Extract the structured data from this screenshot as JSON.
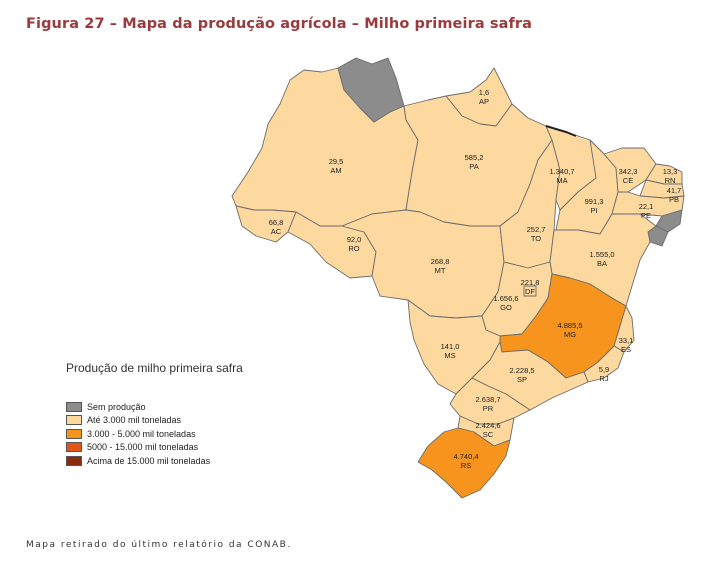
{
  "title": "Figura 27 – Mapa da produção agrícola – Milho primeira safra",
  "legend": {
    "title": "Produção de milho primeira safra",
    "items": [
      {
        "label": "Sem produção",
        "color": "#8c8c8c"
      },
      {
        "label": "Até 3.000 mil toneladas",
        "color": "#fdd9a0"
      },
      {
        "label": "3.000 - 5.000 mil toneladas",
        "color": "#f7941e"
      },
      {
        "label": "5000 - 15.000 mil toneladas",
        "color": "#e0561b"
      },
      {
        "label": "Acima de 15.000 mil toneladas",
        "color": "#8b2a0c"
      }
    ]
  },
  "states": [
    {
      "id": "RR",
      "value": "",
      "class": 0
    },
    {
      "id": "AP",
      "value": "1,6",
      "class": 1
    },
    {
      "id": "AM",
      "value": "29,5",
      "class": 1
    },
    {
      "id": "PA",
      "value": "585,2",
      "class": 1
    },
    {
      "id": "AC",
      "value": "66,8",
      "class": 1
    },
    {
      "id": "RO",
      "value": "92,0",
      "class": 1
    },
    {
      "id": "MT",
      "value": "268,8",
      "class": 1
    },
    {
      "id": "TO",
      "value": "252,7",
      "class": 1
    },
    {
      "id": "MA",
      "value": "1.340,7",
      "class": 1
    },
    {
      "id": "PI",
      "value": "991,3",
      "class": 1
    },
    {
      "id": "CE",
      "value": "342,3",
      "class": 1
    },
    {
      "id": "RN",
      "value": "13,3",
      "class": 1
    },
    {
      "id": "PB",
      "value": "41,7",
      "class": 1
    },
    {
      "id": "PE",
      "value": "22,1",
      "class": 1
    },
    {
      "id": "AL",
      "value": "",
      "class": 0
    },
    {
      "id": "SE",
      "value": "",
      "class": 0
    },
    {
      "id": "BA",
      "value": "1.555,0",
      "class": 1
    },
    {
      "id": "DF",
      "value": "221,8",
      "class": 1
    },
    {
      "id": "GO",
      "value": "1.656,6",
      "class": 1
    },
    {
      "id": "MG",
      "value": "4.885,5",
      "class": 2
    },
    {
      "id": "ES",
      "value": "33,1",
      "class": 1
    },
    {
      "id": "RJ",
      "value": "5,9",
      "class": 1
    },
    {
      "id": "MS",
      "value": "141,0",
      "class": 1
    },
    {
      "id": "SP",
      "value": "2.228,5",
      "class": 1
    },
    {
      "id": "PR",
      "value": "2.638,7",
      "class": 1
    },
    {
      "id": "SC",
      "value": "2.424,6",
      "class": 1
    },
    {
      "id": "RS",
      "value": "4.740,4",
      "class": 2
    }
  ],
  "caption": "Mapa retirado do último relatório da CONAB."
}
